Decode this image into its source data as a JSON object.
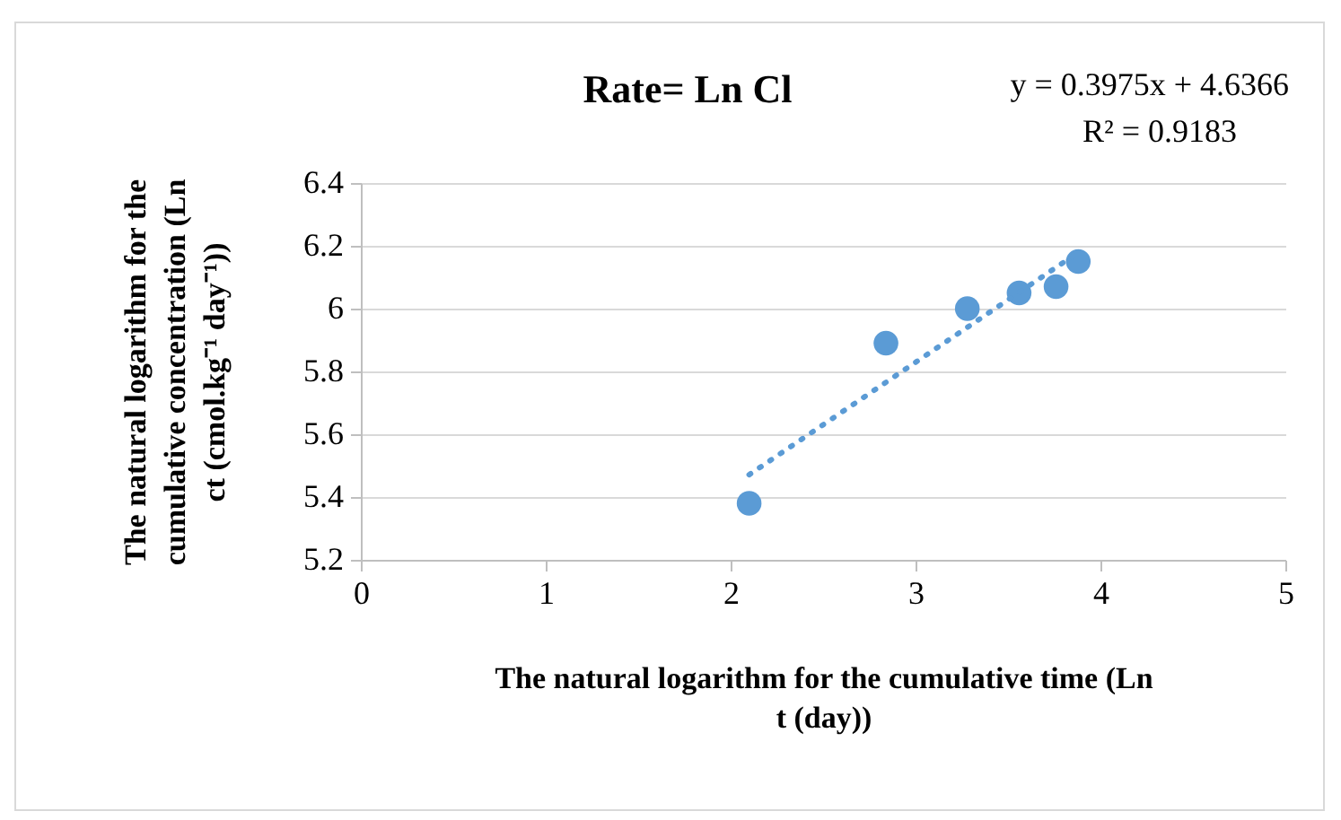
{
  "chart_data": {
    "type": "scatter",
    "title": "Rate= Ln Cl",
    "xlabel": "The natural logarithm for the cumulative time (Ln t (day))",
    "ylabel": "The natural logarithm for the cumulative concentration (Ln ct (cmol.kg⁻¹ day⁻¹))",
    "annotations": [
      "y = 0.3975x + 4.6366",
      "R² = 0.9183"
    ],
    "series": [
      {
        "type": "scatter",
        "color": "#5b9bd5",
        "x": [
          2.1,
          2.84,
          3.28,
          3.56,
          3.76,
          3.88
        ],
        "values": [
          5.38,
          5.89,
          6.0,
          6.05,
          6.07,
          6.15
        ],
        "marker": "circle"
      },
      {
        "type": "line",
        "color": "#5b9bd5",
        "x": [
          2.1,
          3.88
        ],
        "values": [
          5.471,
          6.179
        ],
        "line_style": "dotted"
      }
    ],
    "xlim": [
      0,
      5
    ],
    "xticks": [
      0,
      1,
      2,
      3,
      4,
      5
    ],
    "ylim": [
      5.2,
      6.4
    ],
    "yticks": [
      {
        "value": 5.2,
        "label": "5.2"
      },
      {
        "value": 5.4,
        "label": "5.4"
      },
      {
        "value": 5.6,
        "label": "5.6"
      },
      {
        "value": 5.8,
        "label": "5.8"
      },
      {
        "value": 6,
        "label": "6"
      },
      {
        "value": 6.2,
        "label": "6.2"
      },
      {
        "value": 6.4,
        "label": "6.4"
      }
    ],
    "grid": "y"
  }
}
